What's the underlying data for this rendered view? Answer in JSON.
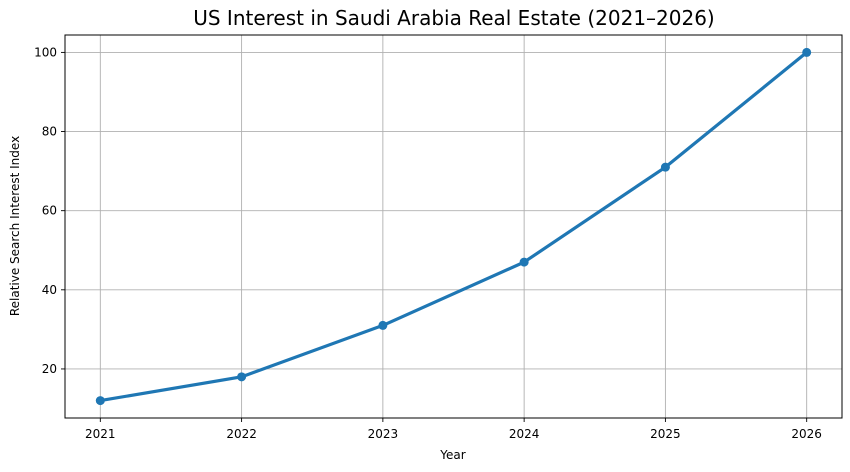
{
  "chart_data": {
    "type": "line",
    "title": "US Interest in Saudi Arabia Real Estate (2021–2026)",
    "xlabel": "Year",
    "ylabel": "Relative Search Interest Index",
    "x": [
      2021,
      2022,
      2023,
      2024,
      2025,
      2026
    ],
    "xlim": [
      2020.75,
      2026.25
    ],
    "ylim": [
      7.6,
      104.4
    ],
    "xticks": [
      2021,
      2022,
      2023,
      2024,
      2025,
      2026
    ],
    "yticks": [
      20,
      40,
      60,
      80,
      100
    ],
    "grid": true,
    "series": [
      {
        "values": [
          12,
          18,
          31,
          47,
          71,
          100
        ],
        "color": "#1f77b4",
        "marker": "circle"
      }
    ]
  }
}
